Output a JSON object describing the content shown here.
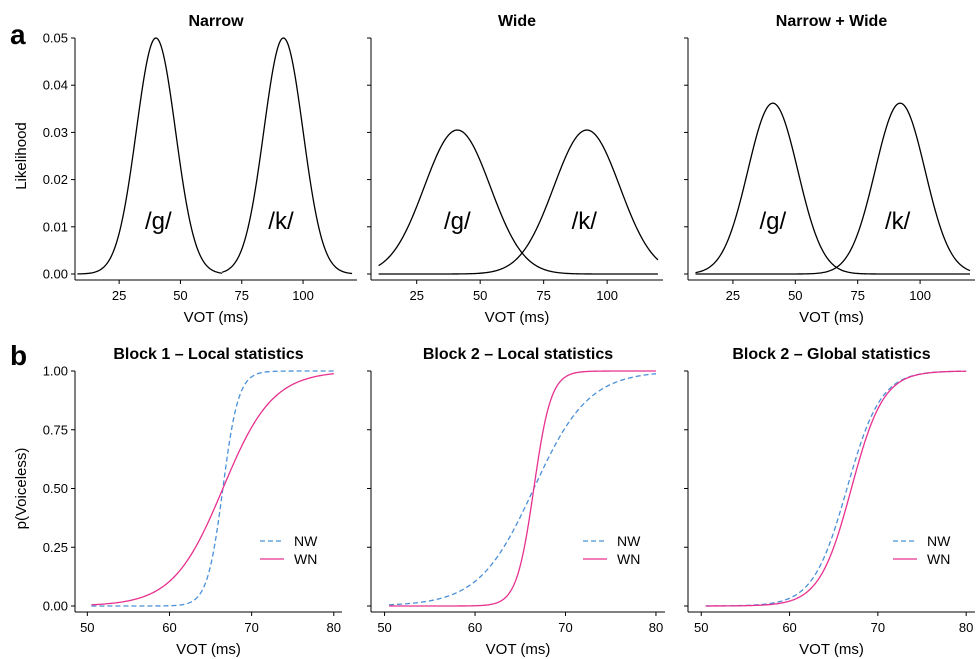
{
  "panel_labels": [
    "a",
    "b"
  ],
  "colors": {
    "nw": "#4a90d9",
    "wn": "#e8308f",
    "category": "#000000"
  },
  "chart_data": [
    {
      "type": "line",
      "title": "Narrow",
      "xlabel": "VOT (ms)",
      "ylabel": "Likelihood",
      "xlim": [
        7,
        122
      ],
      "ylim": [
        0,
        0.05
      ],
      "xticks": [
        25,
        50,
        75,
        100
      ],
      "yticks": [
        0.0,
        0.01,
        0.02,
        0.03,
        0.04,
        0.05
      ],
      "ytick_labels": [
        "0.00",
        "0.01",
        "0.02",
        "0.03",
        "0.04",
        "0.05"
      ],
      "series": [
        {
          "kind": "gaussian",
          "mean": 40,
          "peak": 0.05,
          "sd": 8,
          "x_range": [
            8,
            67
          ]
        },
        {
          "kind": "gaussian",
          "mean": 92,
          "peak": 0.05,
          "sd": 8,
          "x_range": [
            67,
            120
          ]
        }
      ],
      "annotations": [
        {
          "text": "/g/",
          "x": 41,
          "y": 0.0095
        },
        {
          "text": "/k/",
          "x": 91,
          "y": 0.0095
        }
      ]
    },
    {
      "type": "line",
      "title": "Wide",
      "xlabel": "VOT (ms)",
      "ylabel": "",
      "xlim": [
        7,
        122
      ],
      "ylim": [
        0,
        0.05
      ],
      "xticks": [
        25,
        50,
        75,
        100
      ],
      "yticks": [
        0.0,
        0.01,
        0.02,
        0.03,
        0.04,
        0.05
      ],
      "ytick_labels": [],
      "series": [
        {
          "kind": "gaussian",
          "mean": 41,
          "peak": 0.0305,
          "sd": 13,
          "x_range": [
            10,
            120
          ]
        },
        {
          "kind": "gaussian",
          "mean": 92,
          "peak": 0.0305,
          "sd": 13,
          "x_range": [
            10,
            120
          ]
        }
      ],
      "annotations": [
        {
          "text": "/g/",
          "x": 41,
          "y": 0.0095
        },
        {
          "text": "/k/",
          "x": 91,
          "y": 0.0095
        }
      ]
    },
    {
      "type": "line",
      "title": "Narrow + Wide",
      "xlabel": "VOT (ms)",
      "ylabel": "",
      "xlim": [
        7,
        122
      ],
      "ylim": [
        0,
        0.05
      ],
      "xticks": [
        25,
        50,
        75,
        100
      ],
      "yticks": [
        0.0,
        0.01,
        0.02,
        0.03,
        0.04,
        0.05
      ],
      "ytick_labels": [],
      "series": [
        {
          "kind": "gaussian",
          "mean": 41,
          "peak": 0.0362,
          "sd": 10,
          "x_range": [
            10,
            120
          ]
        },
        {
          "kind": "gaussian",
          "mean": 92,
          "peak": 0.0362,
          "sd": 10,
          "x_range": [
            10,
            120
          ]
        }
      ],
      "annotations": [
        {
          "text": "/g/",
          "x": 41,
          "y": 0.0095
        },
        {
          "text": "/k/",
          "x": 91,
          "y": 0.0095
        }
      ]
    },
    {
      "type": "line",
      "title": "Block 1 – Local statistics",
      "xlabel": "VOT (ms)",
      "ylabel": "p(Voiceless)",
      "xlim": [
        48.5,
        81
      ],
      "ylim": [
        0,
        1
      ],
      "xticks": [
        50,
        60,
        70,
        80
      ],
      "yticks": [
        0.0,
        0.25,
        0.5,
        0.75,
        1.0
      ],
      "ytick_labels": [
        "0.00",
        "0.25",
        "0.50",
        "0.75",
        "1.00"
      ],
      "legend": {
        "position": "right",
        "items": [
          "NW",
          "WN"
        ]
      },
      "series": [
        {
          "name": "NW",
          "kind": "logistic",
          "midpoint": 66.5,
          "slope": 1.05,
          "x_range": [
            50.5,
            80
          ],
          "style": "dashed"
        },
        {
          "name": "WN",
          "kind": "logistic",
          "midpoint": 66.5,
          "slope": 0.33,
          "x_range": [
            50.5,
            80
          ],
          "style": "solid"
        }
      ]
    },
    {
      "type": "line",
      "title": "Block 2 – Local statistics",
      "xlabel": "VOT (ms)",
      "ylabel": "",
      "xlim": [
        48.5,
        81
      ],
      "ylim": [
        0,
        1
      ],
      "xticks": [
        50,
        60,
        70,
        80
      ],
      "yticks": [
        0.0,
        0.25,
        0.5,
        0.75,
        1.0
      ],
      "ytick_labels": [],
      "legend": {
        "position": "right",
        "items": [
          "NW",
          "WN"
        ]
      },
      "series": [
        {
          "name": "NW",
          "kind": "logistic",
          "midpoint": 66.5,
          "slope": 0.33,
          "x_range": [
            50.5,
            80
          ],
          "style": "dashed"
        },
        {
          "name": "WN",
          "kind": "logistic",
          "midpoint": 66.5,
          "slope": 1.05,
          "x_range": [
            50.5,
            80
          ],
          "style": "solid"
        }
      ]
    },
    {
      "type": "line",
      "title": "Block 2 – Global statistics",
      "xlabel": "VOT (ms)",
      "ylabel": "",
      "xlim": [
        48.5,
        81
      ],
      "ylim": [
        0,
        1
      ],
      "xticks": [
        50,
        60,
        70,
        80
      ],
      "yticks": [
        0.0,
        0.25,
        0.5,
        0.75,
        1.0
      ],
      "ytick_labels": [],
      "legend": {
        "position": "right",
        "items": [
          "NW",
          "WN"
        ]
      },
      "series": [
        {
          "name": "NW",
          "kind": "logistic",
          "midpoint": 66.5,
          "slope": 0.52,
          "x_range": [
            50.5,
            80
          ],
          "style": "dashed"
        },
        {
          "name": "WN",
          "kind": "logistic",
          "midpoint": 67.0,
          "slope": 0.55,
          "x_range": [
            50.5,
            80
          ],
          "style": "solid"
        }
      ]
    }
  ]
}
